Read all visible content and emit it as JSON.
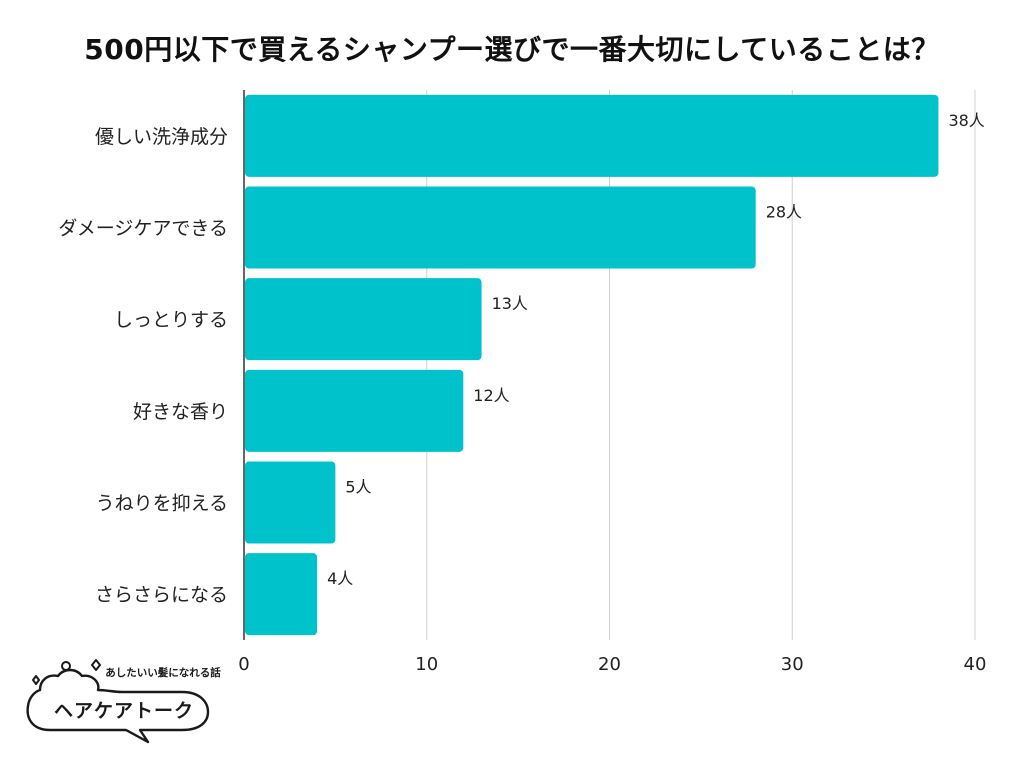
{
  "chart_data": {
    "type": "bar",
    "orientation": "horizontal",
    "title": "500円以下で買えるシャンプー選びで一番大切にしていることは？",
    "categories": [
      "優しい洗浄成分",
      "ダメージケアできる",
      "しっとりする",
      "好きな香り",
      "うねりを抑える",
      "さらさらになる"
    ],
    "values": [
      38,
      28,
      13,
      12,
      5,
      4
    ],
    "value_labels": [
      "38人",
      "28人",
      "13人",
      "12人",
      "5人",
      "4人"
    ],
    "xlim": [
      0,
      40
    ],
    "xticks": [
      0,
      10,
      20,
      30,
      40
    ],
    "xlabel": "",
    "ylabel": "",
    "grid": true,
    "bar_color": "#00C2CB",
    "grid_color": "#D0D0D0"
  },
  "logo": {
    "tagline": "あしたいい髪になれる話",
    "name": "ヘアケアトーク"
  }
}
